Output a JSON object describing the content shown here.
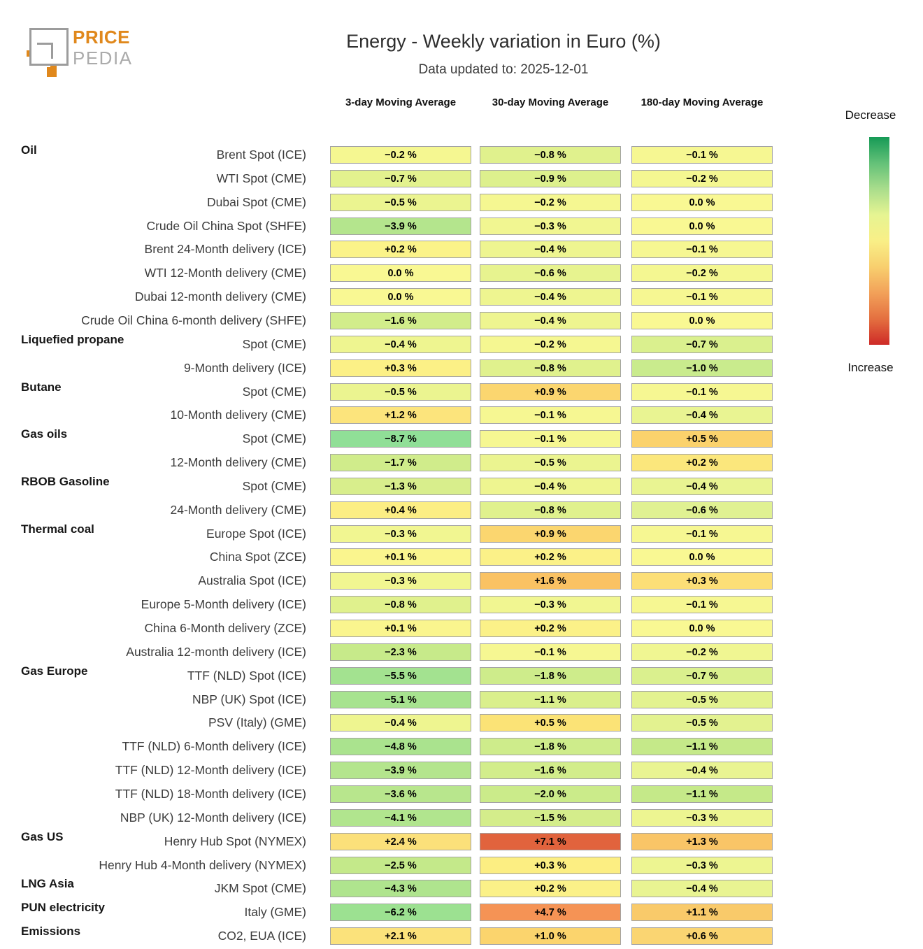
{
  "logo": {
    "line1": "PRICE",
    "line2": "PEDIA",
    "orange": "#e0881c",
    "gray": "#9c9c9c"
  },
  "header": {
    "title": "Energy - Weekly variation in Euro (%)",
    "subtitle": "Data updated to: 2025-12-01"
  },
  "legend": {
    "decrease": "Decrease",
    "increase": "Increase",
    "gradient": [
      "#169a56",
      "#63c178",
      "#a9dd8c",
      "#e6f492",
      "#f9ef87",
      "#f8cf6e",
      "#f2a159",
      "#e47040",
      "#ce2a27"
    ]
  },
  "chart_data": {
    "type": "heatmap",
    "unit": "%",
    "columns": [
      "3-day Moving Average",
      "30-day Moving Average",
      "180-day Moving Average"
    ],
    "rows": [
      {
        "group": "Oil",
        "label": "Brent Spot (ICE)",
        "values": [
          -0.2,
          -0.8,
          -0.1
        ],
        "colors": [
          "#f5f791",
          "#e0f18d",
          "#f6f792"
        ]
      },
      {
        "group": "",
        "label": "WTI Spot (CME)",
        "values": [
          -0.7,
          -0.9,
          -0.2
        ],
        "colors": [
          "#e3f28e",
          "#ddf08d",
          "#f4f791"
        ]
      },
      {
        "group": "",
        "label": "Dubai Spot (CME)",
        "values": [
          -0.5,
          -0.2,
          0.0
        ],
        "colors": [
          "#ebf490",
          "#f5f791",
          "#f9f893"
        ]
      },
      {
        "group": "",
        "label": "Crude Oil China Spot (SHFE)",
        "values": [
          -3.9,
          -0.3,
          0.0
        ],
        "colors": [
          "#b4e58d",
          "#f1f691",
          "#f9f893"
        ]
      },
      {
        "group": "",
        "label": "Brent 24-Month delivery (ICE)",
        "values": [
          0.2,
          -0.4,
          -0.1
        ],
        "colors": [
          "#fbf389",
          "#eef590",
          "#f6f792"
        ]
      },
      {
        "group": "",
        "label": "WTI 12-Month delivery (CME)",
        "values": [
          0.0,
          -0.6,
          -0.2
        ],
        "colors": [
          "#f9f893",
          "#e7f38f",
          "#f4f791"
        ]
      },
      {
        "group": "",
        "label": "Dubai 12-month delivery (CME)",
        "values": [
          0.0,
          -0.4,
          -0.1
        ],
        "colors": [
          "#f9f893",
          "#eef590",
          "#f6f792"
        ]
      },
      {
        "group": "",
        "label": "Crude Oil China 6-month delivery (SHFE)",
        "values": [
          -1.6,
          -0.4,
          0.0
        ],
        "colors": [
          "#d2ed8b",
          "#eef590",
          "#f9f893"
        ]
      },
      {
        "group": "Liquefied propane",
        "label": "Spot (CME)",
        "values": [
          -0.4,
          -0.2,
          -0.7
        ],
        "colors": [
          "#eef590",
          "#f5f791",
          "#daf08e"
        ]
      },
      {
        "group": "",
        "label": "9-Month delivery (ICE)",
        "values": [
          0.3,
          -0.8,
          -1.0
        ],
        "colors": [
          "#fcf086",
          "#e0f18d",
          "#c9eb8d"
        ]
      },
      {
        "group": "Butane",
        "label": "Spot (CME)",
        "values": [
          -0.5,
          0.9,
          -0.1
        ],
        "colors": [
          "#ebf490",
          "#fbd66f",
          "#f6f792"
        ]
      },
      {
        "group": "",
        "label": "10-Month delivery (CME)",
        "values": [
          1.2,
          -0.1,
          -0.4
        ],
        "colors": [
          "#fce47c",
          "#f6f792",
          "#e9f492"
        ]
      },
      {
        "group": "Gas oils",
        "label": "Spot (CME)",
        "values": [
          -8.7,
          -0.1,
          0.5
        ],
        "colors": [
          "#90df97",
          "#f6f792",
          "#fbd26c"
        ]
      },
      {
        "group": "",
        "label": "12-Month delivery (CME)",
        "values": [
          -1.7,
          -0.5,
          0.2
        ],
        "colors": [
          "#d0ec8b",
          "#ebf490",
          "#fbe77c"
        ]
      },
      {
        "group": "RBOB Gasoline",
        "label": "Spot (CME)",
        "values": [
          -1.3,
          -0.4,
          -0.4
        ],
        "colors": [
          "#d8ee8c",
          "#eef590",
          "#e9f492"
        ]
      },
      {
        "group": "",
        "label": "24-Month delivery (CME)",
        "values": [
          0.4,
          -0.8,
          -0.6
        ],
        "colors": [
          "#fcee84",
          "#e0f18d",
          "#e0f192"
        ]
      },
      {
        "group": "Thermal coal",
        "label": "Europe Spot (ICE)",
        "values": [
          -0.3,
          0.9,
          -0.1
        ],
        "colors": [
          "#f1f691",
          "#fbd66f",
          "#f6f792"
        ]
      },
      {
        "group": "",
        "label": "China Spot (ZCE)",
        "values": [
          0.1,
          0.2,
          0.0
        ],
        "colors": [
          "#faf58e",
          "#fbf188",
          "#f9f893"
        ]
      },
      {
        "group": "",
        "label": "Australia Spot (ICE)",
        "values": [
          -0.3,
          1.6,
          0.3
        ],
        "colors": [
          "#f1f691",
          "#fac263",
          "#fcdf77"
        ]
      },
      {
        "group": "",
        "label": "Europe 5-Month delivery (ICE)",
        "values": [
          -0.8,
          -0.3,
          -0.1
        ],
        "colors": [
          "#e0f18d",
          "#f1f691",
          "#f6f792"
        ]
      },
      {
        "group": "",
        "label": "China 6-Month delivery (ZCE)",
        "values": [
          0.1,
          0.2,
          0.0
        ],
        "colors": [
          "#faf58e",
          "#fbf188",
          "#f9f893"
        ]
      },
      {
        "group": "",
        "label": "Australia 12-month delivery (ICE)",
        "values": [
          -2.3,
          -0.1,
          -0.2
        ],
        "colors": [
          "#c7ea8a",
          "#f6f792",
          "#f0f692"
        ]
      },
      {
        "group": "Gas Europe",
        "label": "TTF (NLD) Spot (ICE)",
        "values": [
          -5.5,
          -1.8,
          -0.7
        ],
        "colors": [
          "#a3e290",
          "#ceec8b",
          "#daf08e"
        ]
      },
      {
        "group": "",
        "label": "NBP (UK) Spot (ICE)",
        "values": [
          -5.1,
          -1.1,
          -0.5
        ],
        "colors": [
          "#a7e38f",
          "#daef8c",
          "#e3f290"
        ]
      },
      {
        "group": "",
        "label": "PSV (Italy) (GME)",
        "values": [
          -0.4,
          0.5,
          -0.5
        ],
        "colors": [
          "#eef590",
          "#fbe376",
          "#e3f290"
        ]
      },
      {
        "group": "",
        "label": "TTF (NLD) 6-Month delivery (ICE)",
        "values": [
          -4.8,
          -1.8,
          -1.1
        ],
        "colors": [
          "#aae38e",
          "#ceec8b",
          "#c5e989"
        ]
      },
      {
        "group": "",
        "label": "TTF (NLD) 12-Month delivery (ICE)",
        "values": [
          -3.9,
          -1.6,
          -0.4
        ],
        "colors": [
          "#b4e58d",
          "#d2ed8b",
          "#e9f492"
        ]
      },
      {
        "group": "",
        "label": "TTF (NLD) 18-Month delivery (ICE)",
        "values": [
          -3.6,
          -2.0,
          -1.1
        ],
        "colors": [
          "#b8e68d",
          "#cbeb8a",
          "#c5e989"
        ]
      },
      {
        "group": "",
        "label": "NBP (UK) 12-Month delivery (ICE)",
        "values": [
          -4.1,
          -1.5,
          -0.3
        ],
        "colors": [
          "#b1e58e",
          "#d4ed8b",
          "#edf591"
        ]
      },
      {
        "group": "Gas US",
        "label": "Henry Hub Spot (NYMEX)",
        "values": [
          2.4,
          7.1,
          1.3
        ],
        "colors": [
          "#fbe07a",
          "#e1633d",
          "#f9c567"
        ]
      },
      {
        "group": "",
        "label": "Henry Hub 4-Month delivery (NYMEX)",
        "values": [
          -2.5,
          0.3,
          -0.3
        ],
        "colors": [
          "#c4e98a",
          "#fcee82",
          "#edf591"
        ]
      },
      {
        "group": "LNG Asia",
        "label": "JKM Spot (CME)",
        "values": [
          -4.3,
          0.2,
          -0.4
        ],
        "colors": [
          "#afe48e",
          "#fbf188",
          "#e9f492"
        ]
      },
      {
        "group": "PUN electricity",
        "label": "Italy (GME)",
        "values": [
          -6.2,
          4.7,
          1.1
        ],
        "colors": [
          "#9ce191",
          "#f59355",
          "#f9ca6a"
        ]
      },
      {
        "group": "Emissions",
        "label": "CO2, EUA (ICE)",
        "values": [
          2.1,
          1.0,
          0.6
        ],
        "colors": [
          "#fbe27b",
          "#fbd46d",
          "#fad572"
        ]
      }
    ]
  }
}
